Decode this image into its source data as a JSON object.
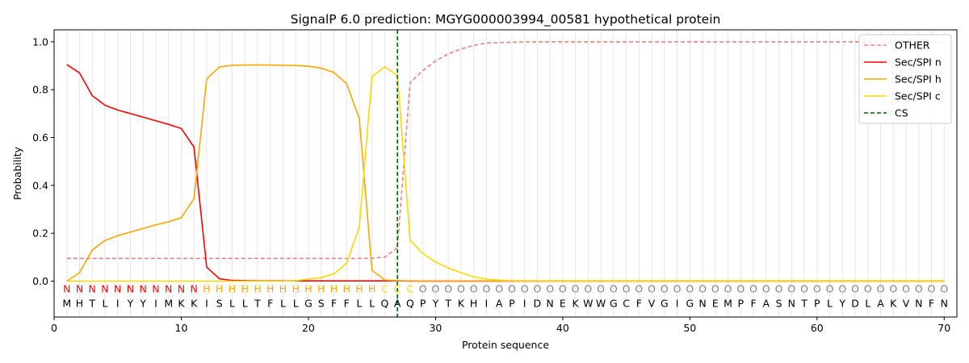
{
  "chart_data": {
    "type": "line",
    "title": "SignalP 6.0 prediction: MGYG000003994_00581 hypothetical protein",
    "xlabel": "Protein sequence",
    "ylabel": "Probability",
    "xlim": [
      0,
      71
    ],
    "ylim": [
      -0.15,
      1.05
    ],
    "xticks": [
      0,
      10,
      20,
      30,
      40,
      50,
      60,
      70
    ],
    "yticks": [
      0.0,
      0.2,
      0.4,
      0.6,
      0.8,
      1.0
    ],
    "xtick_labels": [
      "0",
      "10",
      "20",
      "30",
      "40",
      "50",
      "60",
      "70"
    ],
    "ytick_labels": [
      "0.0",
      "0.2",
      "0.4",
      "0.6",
      "0.8",
      "1.0"
    ],
    "grid": "vertical lines at each residue",
    "legend_position": "top-right",
    "sequence": "MHTLIYYIMKKISLLTFLLGSFFLLQAQPYTKHIAPIDNEKWWGCFVGIGNEMPFASNTPLYDLAKVNFN",
    "regions": "NNNNNNNNNNNHHHHHHHHHHHHHHCCCOOOOOOOOOOOOOOOOOOOOOOOOOOOOOOOOOOOOOOOOOO",
    "region_colors": {
      "N": "#ff0000",
      "H": "#ffa500",
      "C": "#ffd700",
      "O": "#808080"
    },
    "cleavage_site": 27,
    "series": [
      {
        "name": "OTHER",
        "color": "#f08080",
        "dashed": true,
        "values": [
          0.095,
          0.095,
          0.095,
          0.095,
          0.095,
          0.095,
          0.095,
          0.095,
          0.095,
          0.095,
          0.095,
          0.095,
          0.095,
          0.095,
          0.095,
          0.095,
          0.095,
          0.095,
          0.095,
          0.095,
          0.095,
          0.095,
          0.095,
          0.095,
          0.096,
          0.1,
          0.14,
          0.83,
          0.88,
          0.92,
          0.95,
          0.97,
          0.985,
          0.995,
          0.997,
          0.998,
          0.999,
          1.0,
          1.0,
          1.0,
          1.0,
          1.0,
          1.0,
          1.0,
          1.0,
          1.0,
          1.0,
          1.0,
          1.0,
          1.0,
          1.0,
          1.0,
          1.0,
          1.0,
          1.0,
          1.0,
          1.0,
          1.0,
          1.0,
          1.0,
          1.0,
          1.0,
          1.0,
          1.0,
          1.0,
          1.0,
          1.0,
          1.0,
          1.0,
          1.0
        ]
      },
      {
        "name": "Sec/SPI n",
        "color": "#ff0000",
        "dashed": false,
        "values": [
          0.905,
          0.87,
          0.775,
          0.735,
          0.715,
          0.7,
          0.685,
          0.67,
          0.655,
          0.638,
          0.56,
          0.058,
          0.01,
          0.003,
          0.002,
          0.001,
          0.001,
          0.001,
          0.001,
          0.001,
          0.001,
          0.001,
          0.001,
          0.001,
          0.001,
          0.001,
          0.001,
          0.0,
          0.0,
          0.0,
          0.0,
          0.0,
          0.0,
          0.0,
          0.0,
          0.0,
          0.0,
          0.0,
          0.0,
          0.0,
          0.0,
          0.0,
          0.0,
          0.0,
          0.0,
          0.0,
          0.0,
          0.0,
          0.0,
          0.0,
          0.0,
          0.0,
          0.0,
          0.0,
          0.0,
          0.0,
          0.0,
          0.0,
          0.0,
          0.0,
          0.0,
          0.0,
          0.0,
          0.0,
          0.0,
          0.0,
          0.0,
          0.0,
          0.0,
          0.0
        ]
      },
      {
        "name": "Sec/SPI h",
        "color": "#ffa500",
        "dashed": false,
        "values": [
          0.0,
          0.035,
          0.13,
          0.17,
          0.19,
          0.205,
          0.22,
          0.235,
          0.248,
          0.265,
          0.345,
          0.845,
          0.895,
          0.902,
          0.903,
          0.903,
          0.903,
          0.902,
          0.901,
          0.898,
          0.89,
          0.872,
          0.825,
          0.68,
          0.045,
          0.005,
          0.002,
          0.001,
          0.001,
          0.001,
          0.001,
          0.001,
          0.001,
          0.001,
          0.001,
          0.001,
          0.001,
          0.001,
          0.001,
          0.001,
          0.001,
          0.001,
          0.001,
          0.001,
          0.001,
          0.001,
          0.001,
          0.001,
          0.001,
          0.001,
          0.001,
          0.001,
          0.001,
          0.001,
          0.001,
          0.001,
          0.001,
          0.001,
          0.001,
          0.001,
          0.001,
          0.001,
          0.001,
          0.001,
          0.001,
          0.001,
          0.001,
          0.001,
          0.001,
          0.001
        ]
      },
      {
        "name": "Sec/SPI c",
        "color": "#ffd700",
        "dashed": false,
        "values": [
          0.0,
          0.0,
          0.0,
          0.0,
          0.0,
          0.0,
          0.0,
          0.0,
          0.0,
          0.0,
          0.0,
          0.0,
          0.0,
          0.0,
          0.0,
          0.0,
          0.0,
          0.0,
          0.002,
          0.008,
          0.015,
          0.03,
          0.075,
          0.225,
          0.855,
          0.895,
          0.86,
          0.17,
          0.115,
          0.08,
          0.055,
          0.035,
          0.018,
          0.008,
          0.004,
          0.002,
          0.001,
          0.001,
          0.0,
          0.0,
          0.0,
          0.0,
          0.0,
          0.0,
          0.0,
          0.0,
          0.0,
          0.0,
          0.0,
          0.0,
          0.0,
          0.0,
          0.0,
          0.0,
          0.0,
          0.0,
          0.0,
          0.0,
          0.0,
          0.0,
          0.0,
          0.0,
          0.0,
          0.0,
          0.0,
          0.0,
          0.0,
          0.0,
          0.0,
          0.0
        ]
      },
      {
        "name": "CS",
        "color": "#006400",
        "dashed": true,
        "vertical_at": 27
      }
    ]
  }
}
